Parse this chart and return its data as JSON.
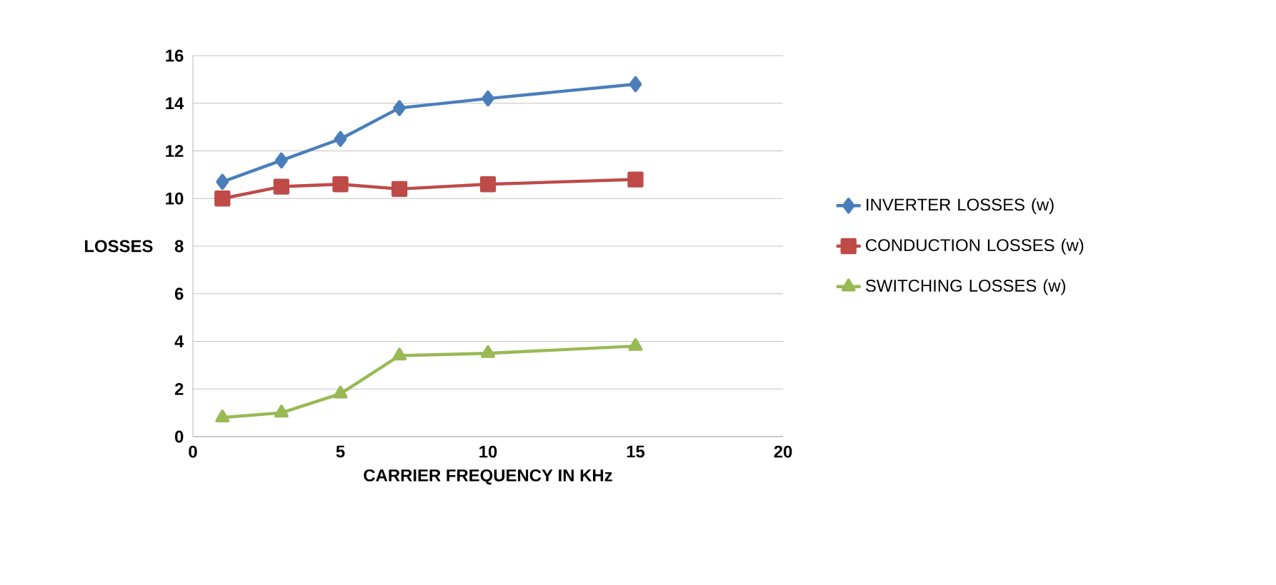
{
  "chart_data": {
    "type": "line",
    "xlabel": "CARRIER  FREQUENCY IN KHz",
    "ylabel": "LOSSES",
    "x": [
      1,
      3,
      5,
      7,
      10,
      15
    ],
    "xlim": [
      0,
      20
    ],
    "xticks": [
      0,
      5,
      10,
      15,
      20
    ],
    "ylim": [
      0,
      16
    ],
    "yticks": [
      0,
      2,
      4,
      6,
      8,
      10,
      12,
      14,
      16
    ],
    "grid": "y",
    "legend": "right",
    "line_style": "solid",
    "series": [
      {
        "name": "INVERTER  LOSSES (w)",
        "color": "#4a7ebb",
        "marker": "diamond",
        "values": [
          10.7,
          11.6,
          12.5,
          13.8,
          14.2,
          14.8
        ]
      },
      {
        "name": "CONDUCTION LOSSES (w)",
        "color": "#be4b48",
        "marker": "square",
        "values": [
          10.0,
          10.5,
          10.6,
          10.4,
          10.6,
          10.8
        ]
      },
      {
        "name": "SWITCHING  LOSSES (w)",
        "color": "#98b954",
        "marker": "triangle",
        "values": [
          0.8,
          1.0,
          1.8,
          3.4,
          3.5,
          3.8
        ]
      }
    ]
  }
}
